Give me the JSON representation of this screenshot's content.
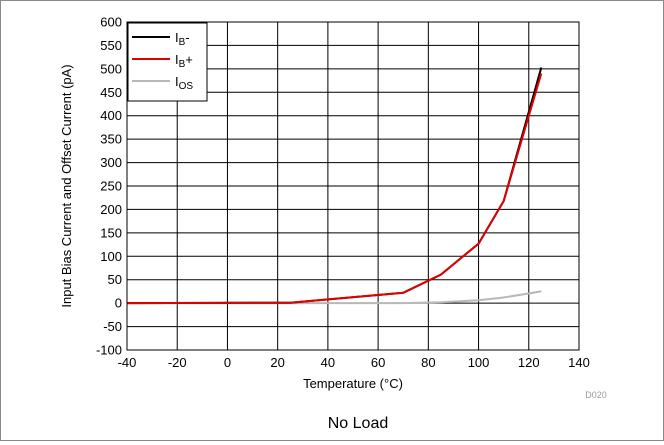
{
  "chart_data": {
    "type": "line",
    "title": "",
    "caption": "No Load",
    "figure_id": "D020",
    "xlabel": "Temperature (°C)",
    "ylabel": "Input Bias Current and Offset Current (pA)",
    "xlim": [
      -40,
      140
    ],
    "ylim": [
      -100,
      600
    ],
    "x_ticks": [
      -40,
      -20,
      0,
      20,
      40,
      60,
      80,
      100,
      120,
      140
    ],
    "y_ticks": [
      -100,
      -50,
      0,
      50,
      100,
      150,
      200,
      250,
      300,
      350,
      400,
      450,
      500,
      550,
      600
    ],
    "x_ticks_labels": [
      "-40",
      "-20",
      "0",
      "20",
      "40",
      "60",
      "80",
      "100",
      "120",
      "140"
    ],
    "y_ticks_labels": [
      "-100",
      "-50",
      "0",
      "50",
      "100",
      "150",
      "200",
      "250",
      "300",
      "350",
      "400",
      "450",
      "500",
      "550",
      "600"
    ],
    "grid": true,
    "legend_position": "top-left",
    "series": [
      {
        "name": "IB-",
        "label_main": "I",
        "label_sub": "B",
        "label_suffix": "-",
        "color": "#000000",
        "x": [
          -40,
          25,
          70,
          85,
          100,
          110,
          125
        ],
        "y": [
          0,
          1,
          22,
          61,
          127,
          218,
          503
        ]
      },
      {
        "name": "IB+",
        "label_main": "I",
        "label_sub": "B",
        "label_suffix": "+",
        "color": "#e00000",
        "x": [
          -40,
          25,
          70,
          85,
          100,
          110,
          125
        ],
        "y": [
          0,
          1,
          22,
          61,
          127,
          218,
          490
        ]
      },
      {
        "name": "IOS",
        "label_main": "I",
        "label_sub": "OS",
        "label_suffix": "",
        "color": "#b8b8b8",
        "x": [
          -40,
          25,
          70,
          85,
          100,
          110,
          125
        ],
        "y": [
          0,
          0,
          0,
          2,
          6,
          12,
          25
        ]
      }
    ]
  }
}
